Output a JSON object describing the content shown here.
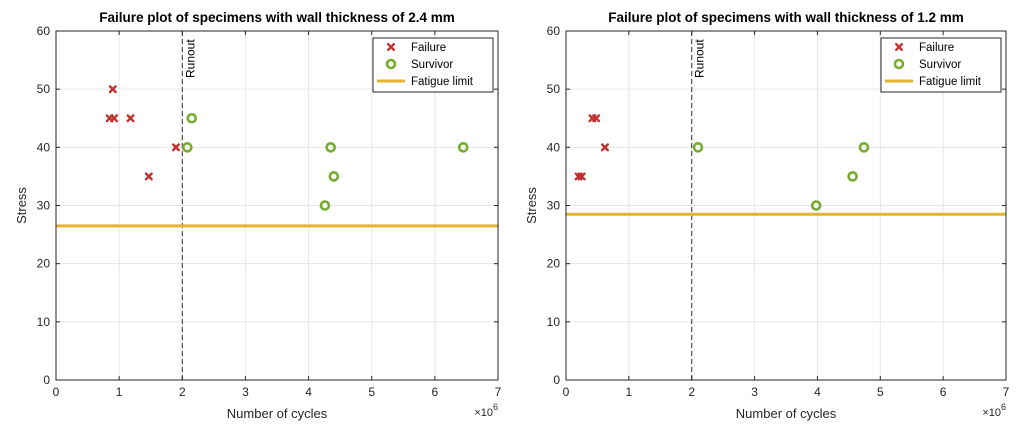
{
  "colors": {
    "failure": "#c0302e",
    "survivor": "#77ac30",
    "fatigue_limit": "#e3b331",
    "grid": "#e6e6e6",
    "axis": "#262626"
  },
  "chart_data": [
    {
      "type": "scatter",
      "title": "Failure plot of specimens with wall thickness of 2.4 mm",
      "xlabel": "Number of cycles",
      "ylabel": "Stress",
      "x_multiplier": "×10",
      "x_exponent": "6",
      "xlim": [
        0,
        7
      ],
      "ylim": [
        0,
        60
      ],
      "xticks": [
        "0",
        "1",
        "2",
        "3",
        "4",
        "5",
        "6",
        "7"
      ],
      "yticks": [
        "0",
        "10",
        "20",
        "30",
        "40",
        "50",
        "60"
      ],
      "grid": true,
      "legend_position": "top-right",
      "runout": {
        "x": 2,
        "label": "Runout"
      },
      "series": [
        {
          "name": "Failure",
          "marker": "x",
          "points": [
            [
              0.85,
              45
            ],
            [
              0.92,
              45
            ],
            [
              0.9,
              50
            ],
            [
              1.18,
              45
            ],
            [
              1.47,
              35
            ],
            [
              1.9,
              40
            ]
          ]
        },
        {
          "name": "Survivor",
          "marker": "o",
          "points": [
            [
              2.08,
              40
            ],
            [
              2.15,
              45
            ],
            [
              4.26,
              30
            ],
            [
              4.35,
              40
            ],
            [
              4.4,
              35
            ],
            [
              6.45,
              40
            ]
          ]
        },
        {
          "name": "Fatigue limit",
          "marker": "hline",
          "y": 26.5
        }
      ]
    },
    {
      "type": "scatter",
      "title": "Failure plot of specimens with wall thickness of 1.2 mm",
      "xlabel": "Number of cycles",
      "ylabel": "Stress",
      "x_multiplier": "×10",
      "x_exponent": "6",
      "xlim": [
        0,
        7
      ],
      "ylim": [
        0,
        60
      ],
      "xticks": [
        "0",
        "1",
        "2",
        "3",
        "4",
        "5",
        "6",
        "7"
      ],
      "yticks": [
        "0",
        "10",
        "20",
        "30",
        "40",
        "50",
        "60"
      ],
      "grid": true,
      "legend_position": "top-right",
      "runout": {
        "x": 2,
        "label": "Runout"
      },
      "series": [
        {
          "name": "Failure",
          "marker": "x",
          "points": [
            [
              0.2,
              35
            ],
            [
              0.25,
              35
            ],
            [
              0.42,
              45
            ],
            [
              0.48,
              45
            ],
            [
              0.62,
              40
            ]
          ]
        },
        {
          "name": "Survivor",
          "marker": "o",
          "points": [
            [
              2.1,
              40
            ],
            [
              3.98,
              30
            ],
            [
              4.56,
              35
            ],
            [
              4.74,
              40
            ]
          ]
        },
        {
          "name": "Fatigue limit",
          "marker": "hline",
          "y": 28.5
        }
      ]
    }
  ]
}
